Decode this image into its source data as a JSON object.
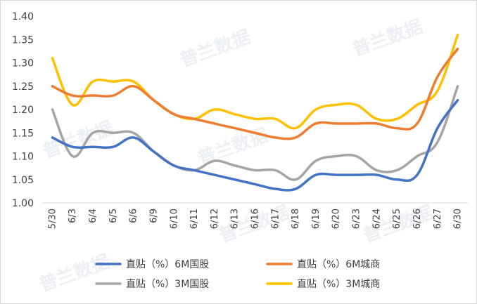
{
  "chart_data": {
    "type": "line",
    "x": [
      "5/30",
      "6/3",
      "6/4",
      "6/5",
      "6/6",
      "6/9",
      "6/10",
      "6/11",
      "6/12",
      "6/13",
      "6/16",
      "6/17",
      "6/18",
      "6/19",
      "6/20",
      "6/23",
      "6/24",
      "6/25",
      "6/26",
      "6/27",
      "6/30"
    ],
    "ylim": [
      1.0,
      1.4
    ],
    "yticks": [
      "1.00",
      "1.05",
      "1.10",
      "1.15",
      "1.20",
      "1.25",
      "1.30",
      "1.35",
      "1.40"
    ],
    "grid": false,
    "legend_position": "bottom",
    "series": [
      {
        "name": "直贴（%）6M国股",
        "color": "#4472c4",
        "values": [
          1.14,
          1.12,
          1.12,
          1.12,
          1.14,
          1.11,
          1.08,
          1.07,
          1.06,
          1.05,
          1.04,
          1.03,
          1.03,
          1.06,
          1.06,
          1.06,
          1.06,
          1.05,
          1.06,
          1.16,
          1.22
        ]
      },
      {
        "name": "直贴（%）6M城商",
        "color": "#ed7d31",
        "values": [
          1.25,
          1.23,
          1.23,
          1.23,
          1.25,
          1.22,
          1.19,
          1.18,
          1.17,
          1.16,
          1.15,
          1.14,
          1.14,
          1.17,
          1.17,
          1.17,
          1.17,
          1.16,
          1.17,
          1.27,
          1.33
        ]
      },
      {
        "name": "直贴（%）3M国股",
        "color": "#a5a5a5",
        "values": [
          1.2,
          1.1,
          1.15,
          1.15,
          1.15,
          1.11,
          1.08,
          1.07,
          1.09,
          1.08,
          1.07,
          1.07,
          1.05,
          1.09,
          1.1,
          1.1,
          1.07,
          1.07,
          1.1,
          1.13,
          1.25
        ]
      },
      {
        "name": "直贴（%）3M城商",
        "color": "#ffc000",
        "values": [
          1.31,
          1.21,
          1.26,
          1.26,
          1.26,
          1.22,
          1.19,
          1.18,
          1.2,
          1.19,
          1.18,
          1.18,
          1.16,
          1.2,
          1.21,
          1.21,
          1.18,
          1.18,
          1.21,
          1.24,
          1.36
        ]
      }
    ]
  },
  "watermark": {
    "text": "普兰数据"
  }
}
